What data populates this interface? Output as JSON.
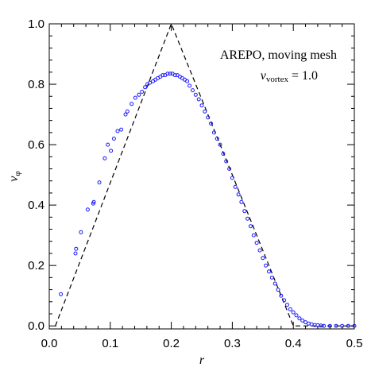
{
  "chart_data": {
    "type": "scatter",
    "xlabel": "r",
    "ylabel": "v",
    "ylabel_sub": "φ",
    "xlim": [
      0.0,
      0.5
    ],
    "ylim": [
      -0.01,
      1.0
    ],
    "xticks": [
      0.0,
      0.1,
      0.2,
      0.3,
      0.4,
      0.5
    ],
    "xtick_labels": [
      "0.0",
      "0.1",
      "0.2",
      "0.3",
      "0.4",
      "0.5"
    ],
    "yticks": [
      0.0,
      0.2,
      0.4,
      0.6,
      0.8,
      1.0
    ],
    "ytick_labels": [
      "0.0",
      "0.2",
      "0.4",
      "0.6",
      "0.8",
      "1.0"
    ],
    "annotation_line1": "AREPO, moving mesh",
    "annotation_v": "v",
    "annotation_sub": "vortex",
    "annotation_value": " = 1.0",
    "reference_curve": {
      "style": "dashed",
      "color": "#000000",
      "x": [
        0.01,
        0.2,
        0.4,
        0.5
      ],
      "y": [
        0.0,
        1.0,
        0.0,
        0.0
      ]
    },
    "series": [
      {
        "marker": "open-circle",
        "color": "#1a1aff",
        "x": [
          0.019,
          0.043,
          0.044,
          0.052,
          0.063,
          0.072,
          0.073,
          0.082,
          0.091,
          0.096,
          0.101,
          0.106,
          0.112,
          0.118,
          0.125,
          0.128,
          0.135,
          0.141,
          0.147,
          0.152,
          0.157,
          0.161,
          0.165,
          0.17,
          0.174,
          0.178,
          0.182,
          0.186,
          0.19,
          0.194,
          0.198,
          0.202,
          0.206,
          0.21,
          0.214,
          0.218,
          0.222,
          0.226,
          0.23,
          0.235,
          0.24,
          0.245,
          0.25,
          0.255,
          0.26,
          0.265,
          0.27,
          0.275,
          0.28,
          0.285,
          0.29,
          0.295,
          0.3,
          0.305,
          0.31,
          0.315,
          0.32,
          0.325,
          0.33,
          0.335,
          0.34,
          0.345,
          0.35,
          0.355,
          0.36,
          0.365,
          0.37,
          0.375,
          0.38,
          0.385,
          0.39,
          0.395,
          0.4,
          0.405,
          0.41,
          0.415,
          0.42,
          0.425,
          0.43,
          0.435,
          0.44,
          0.445,
          0.45,
          0.46,
          0.47,
          0.48,
          0.49,
          0.5
        ],
        "y": [
          0.105,
          0.24,
          0.255,
          0.31,
          0.385,
          0.405,
          0.41,
          0.475,
          0.555,
          0.6,
          0.58,
          0.62,
          0.645,
          0.65,
          0.7,
          0.71,
          0.735,
          0.755,
          0.765,
          0.775,
          0.79,
          0.8,
          0.805,
          0.81,
          0.815,
          0.82,
          0.825,
          0.83,
          0.83,
          0.835,
          0.835,
          0.835,
          0.83,
          0.83,
          0.825,
          0.82,
          0.815,
          0.81,
          0.795,
          0.78,
          0.765,
          0.75,
          0.73,
          0.71,
          0.69,
          0.67,
          0.64,
          0.62,
          0.6,
          0.57,
          0.545,
          0.52,
          0.49,
          0.46,
          0.435,
          0.41,
          0.38,
          0.355,
          0.33,
          0.3,
          0.275,
          0.25,
          0.225,
          0.2,
          0.18,
          0.16,
          0.14,
          0.12,
          0.1,
          0.085,
          0.07,
          0.055,
          0.045,
          0.035,
          0.025,
          0.018,
          0.012,
          0.008,
          0.005,
          0.003,
          0.002,
          0.001,
          0.0,
          0.0,
          0.0,
          0.0,
          0.0,
          0.0
        ]
      }
    ]
  }
}
